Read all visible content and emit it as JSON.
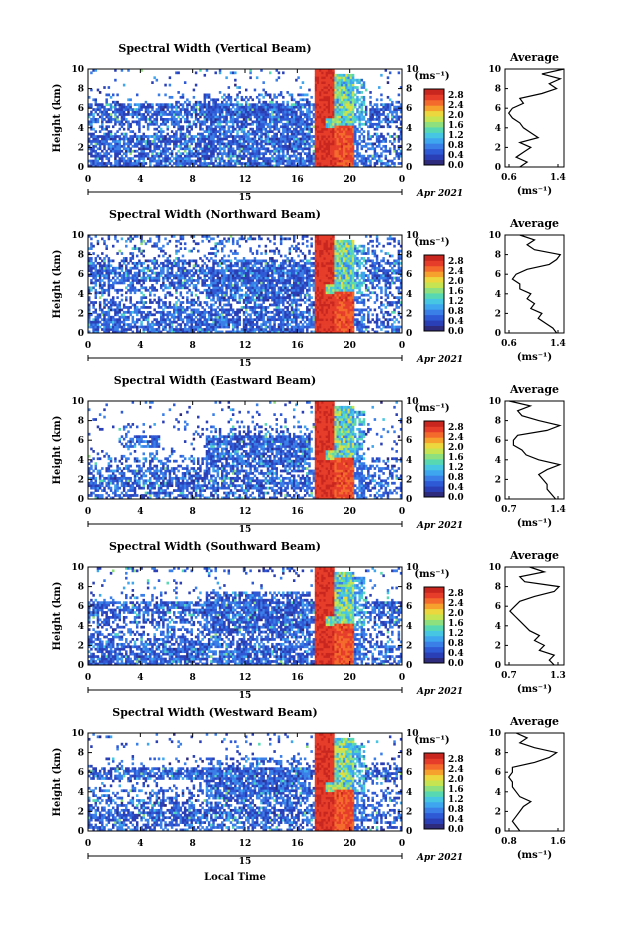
{
  "chart_data": [
    {
      "type": "heatmap",
      "title": "Spectral Width (Vertical Beam)",
      "avg_title": "Average",
      "avg_xticks": [
        "0.6",
        "1.4"
      ],
      "avg_xlim": [
        0.6,
        1.4
      ],
      "avg_profile": [
        [
          0.8,
          0
        ],
        [
          0.9,
          0.5
        ],
        [
          0.75,
          1
        ],
        [
          0.85,
          1.5
        ],
        [
          0.95,
          2
        ],
        [
          0.8,
          2.5
        ],
        [
          1.05,
          3
        ],
        [
          0.95,
          3.5
        ],
        [
          0.85,
          4
        ],
        [
          0.8,
          4.5
        ],
        [
          0.7,
          5
        ],
        [
          0.65,
          5.5
        ],
        [
          0.7,
          6
        ],
        [
          0.85,
          6.5
        ],
        [
          0.8,
          7
        ],
        [
          1.1,
          7.5
        ],
        [
          1.3,
          8
        ],
        [
          1.2,
          8.5
        ],
        [
          1.35,
          9
        ],
        [
          1.1,
          9.5
        ],
        [
          1.4,
          10
        ]
      ]
    },
    {
      "type": "heatmap",
      "title": "Spectral Width (Northward Beam)",
      "avg_title": "Average",
      "avg_xticks": [
        "0.6",
        "1.4"
      ],
      "avg_xlim": [
        0.6,
        1.4
      ],
      "avg_profile": [
        [
          1.3,
          0
        ],
        [
          1.25,
          0.5
        ],
        [
          1.15,
          1
        ],
        [
          1.05,
          1.5
        ],
        [
          1.1,
          2
        ],
        [
          0.95,
          2.5
        ],
        [
          1.0,
          3
        ],
        [
          0.9,
          3.5
        ],
        [
          0.95,
          4
        ],
        [
          0.8,
          4.5
        ],
        [
          0.8,
          5
        ],
        [
          0.7,
          5.5
        ],
        [
          0.75,
          6
        ],
        [
          0.9,
          6.5
        ],
        [
          1.2,
          7
        ],
        [
          1.3,
          7.5
        ],
        [
          1.35,
          8
        ],
        [
          1.0,
          8.5
        ],
        [
          0.9,
          9
        ],
        [
          1.0,
          9.5
        ],
        [
          0.8,
          10
        ]
      ]
    },
    {
      "type": "heatmap",
      "title": "Spectral Width (Eastward Beam)",
      "avg_title": "Average",
      "avg_xticks": [
        "0.7",
        "1.4"
      ],
      "avg_xlim": [
        0.7,
        1.4
      ],
      "avg_profile": [
        [
          1.3,
          0
        ],
        [
          1.25,
          0.5
        ],
        [
          1.2,
          1
        ],
        [
          1.2,
          1.5
        ],
        [
          1.15,
          2
        ],
        [
          1.1,
          2.5
        ],
        [
          1.2,
          3
        ],
        [
          1.35,
          3.5
        ],
        [
          1.1,
          4
        ],
        [
          0.95,
          4.5
        ],
        [
          0.9,
          5
        ],
        [
          0.8,
          5.5
        ],
        [
          0.8,
          6
        ],
        [
          0.85,
          6.5
        ],
        [
          1.2,
          7
        ],
        [
          1.35,
          7.5
        ],
        [
          1.1,
          8
        ],
        [
          0.9,
          8.5
        ],
        [
          0.85,
          9
        ],
        [
          1.0,
          9.5
        ],
        [
          0.75,
          10
        ]
      ]
    },
    {
      "type": "heatmap",
      "title": "Spectral Width (Southward Beam)",
      "avg_title": "Average",
      "avg_xticks": [
        "0.7",
        "1.3"
      ],
      "avg_xlim": [
        0.7,
        1.3
      ],
      "avg_profile": [
        [
          1.2,
          0
        ],
        [
          1.15,
          0.5
        ],
        [
          1.2,
          1
        ],
        [
          1.05,
          1.5
        ],
        [
          1.1,
          2
        ],
        [
          1.0,
          2.5
        ],
        [
          1.05,
          3
        ],
        [
          0.95,
          3.5
        ],
        [
          0.9,
          4
        ],
        [
          0.85,
          4.5
        ],
        [
          0.8,
          5
        ],
        [
          0.75,
          5.5
        ],
        [
          0.8,
          6
        ],
        [
          0.85,
          6.5
        ],
        [
          1.0,
          7
        ],
        [
          1.2,
          7.5
        ],
        [
          1.25,
          8
        ],
        [
          0.9,
          8.5
        ],
        [
          0.85,
          9
        ],
        [
          1.1,
          9.5
        ],
        [
          0.95,
          10
        ]
      ]
    },
    {
      "type": "heatmap",
      "title": "Spectral Width (Westward Beam)",
      "avg_title": "Average",
      "avg_xticks": [
        "0.8",
        "1.6"
      ],
      "avg_xlim": [
        0.8,
        1.6
      ],
      "avg_profile": [
        [
          1.0,
          0
        ],
        [
          0.95,
          0.5
        ],
        [
          0.9,
          1
        ],
        [
          0.95,
          1.5
        ],
        [
          1.0,
          2
        ],
        [
          1.05,
          2.5
        ],
        [
          1.15,
          3
        ],
        [
          1.0,
          3.5
        ],
        [
          0.95,
          4
        ],
        [
          0.9,
          4.5
        ],
        [
          0.9,
          5
        ],
        [
          0.85,
          5.5
        ],
        [
          0.9,
          6
        ],
        [
          0.9,
          6.5
        ],
        [
          1.2,
          7
        ],
        [
          1.4,
          7.5
        ],
        [
          1.5,
          8
        ],
        [
          1.2,
          8.5
        ],
        [
          1.0,
          9
        ],
        [
          1.1,
          9.5
        ],
        [
          0.95,
          10
        ]
      ]
    }
  ],
  "shared": {
    "ylabel": "Height (km)",
    "yticks": [
      "0",
      "2",
      "4",
      "6",
      "8",
      "10"
    ],
    "ylim": [
      0,
      10
    ],
    "xticks": [
      "0",
      "4",
      "8",
      "12",
      "16",
      "20",
      "0"
    ],
    "xlim": [
      0,
      24
    ],
    "date_marker": "15",
    "month_year": "Apr 2021",
    "cbar_title": "(ms⁻¹)",
    "cbar_ticks": [
      "0.0",
      "0.4",
      "0.8",
      "1.2",
      "1.6",
      "2.0",
      "2.4",
      "2.8"
    ],
    "avg_xlabel": "(ms⁻¹)",
    "bottom_xlabel": "Local Time",
    "avg_ylim": [
      0,
      10
    ]
  },
  "colors": {
    "cmap": [
      "#2e2a7c",
      "#2a3fb5",
      "#2f5ad6",
      "#3a7ee8",
      "#3ea6ee",
      "#46c6e2",
      "#58d8b2",
      "#8ee07e",
      "#c6e451",
      "#ecd83e",
      "#f6a02e",
      "#f46a2c",
      "#e63d2a",
      "#c8261f"
    ]
  }
}
